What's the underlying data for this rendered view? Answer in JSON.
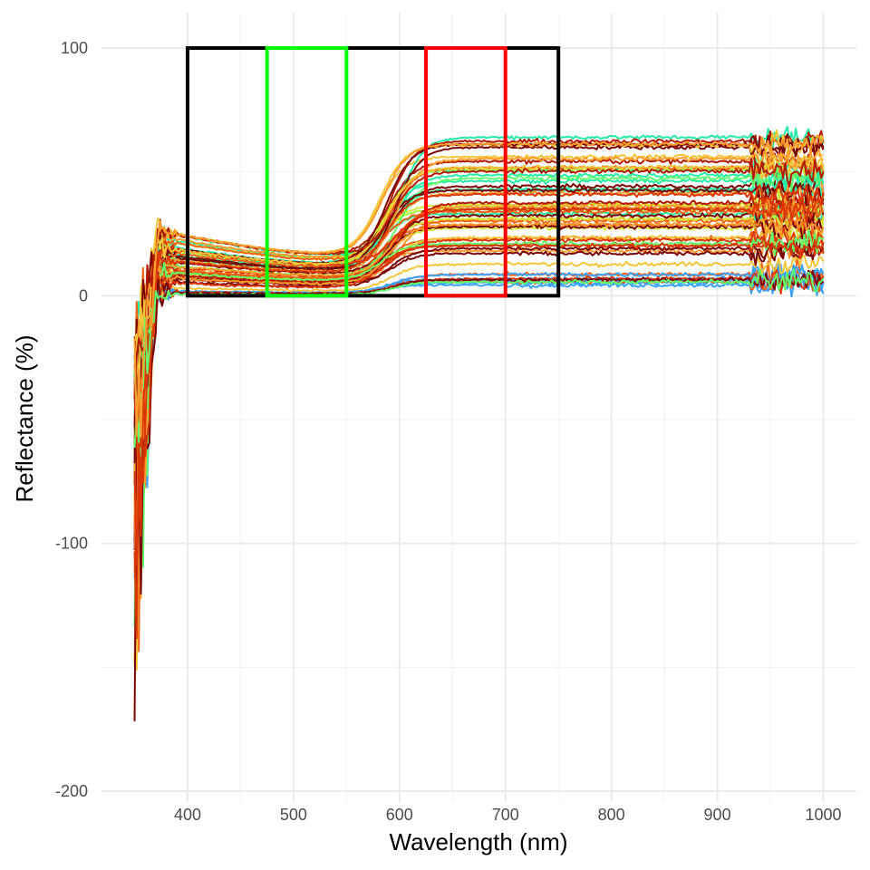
{
  "chart_data": {
    "type": "line",
    "xlabel": "Wavelength (nm)",
    "ylabel": "Reflectance (%)",
    "xlim": [
      350,
      1000
    ],
    "ylim": [
      -200,
      100
    ],
    "x_ticks": [
      400,
      500,
      600,
      700,
      800,
      900,
      1000
    ],
    "y_ticks": [
      -200,
      -100,
      0,
      100
    ],
    "x_tick_labels": [
      "400",
      "500",
      "600",
      "700",
      "800",
      "900",
      "1000"
    ],
    "y_tick_labels": [
      "-200",
      "-100",
      "0",
      "100"
    ],
    "grid": true,
    "legend": "none",
    "regions": [
      {
        "xmin": 400,
        "xmax": 750,
        "ymin": 0,
        "ymax": 100,
        "color": "#000000"
      },
      {
        "xmin": 475,
        "xmax": 550,
        "ymin": 0,
        "ymax": 100,
        "color": "#00ff00"
      },
      {
        "xmin": 625,
        "xmax": 700,
        "ymin": 0,
        "ymax": 100,
        "color": "#ff0000"
      }
    ],
    "series_profile": {
      "count": 60,
      "x_start": 350,
      "x_end": 1000,
      "plateau_reflectance_min": 5,
      "plateau_reflectance_max": 65,
      "visible_reflectance_min": 0,
      "visible_reflectance_max": 37,
      "red_edge_center": 590,
      "noise_region_end": 400,
      "min_dip": -185
    },
    "palette": [
      "#30123b",
      "#4145ab",
      "#4675ed",
      "#39a2fc",
      "#1bcfd4",
      "#24eca6",
      "#61fc6c",
      "#a4fc3b",
      "#d1e834",
      "#f3c63a",
      "#fe9b2d",
      "#f36315",
      "#d93806",
      "#b11901",
      "#7a0402"
    ]
  }
}
